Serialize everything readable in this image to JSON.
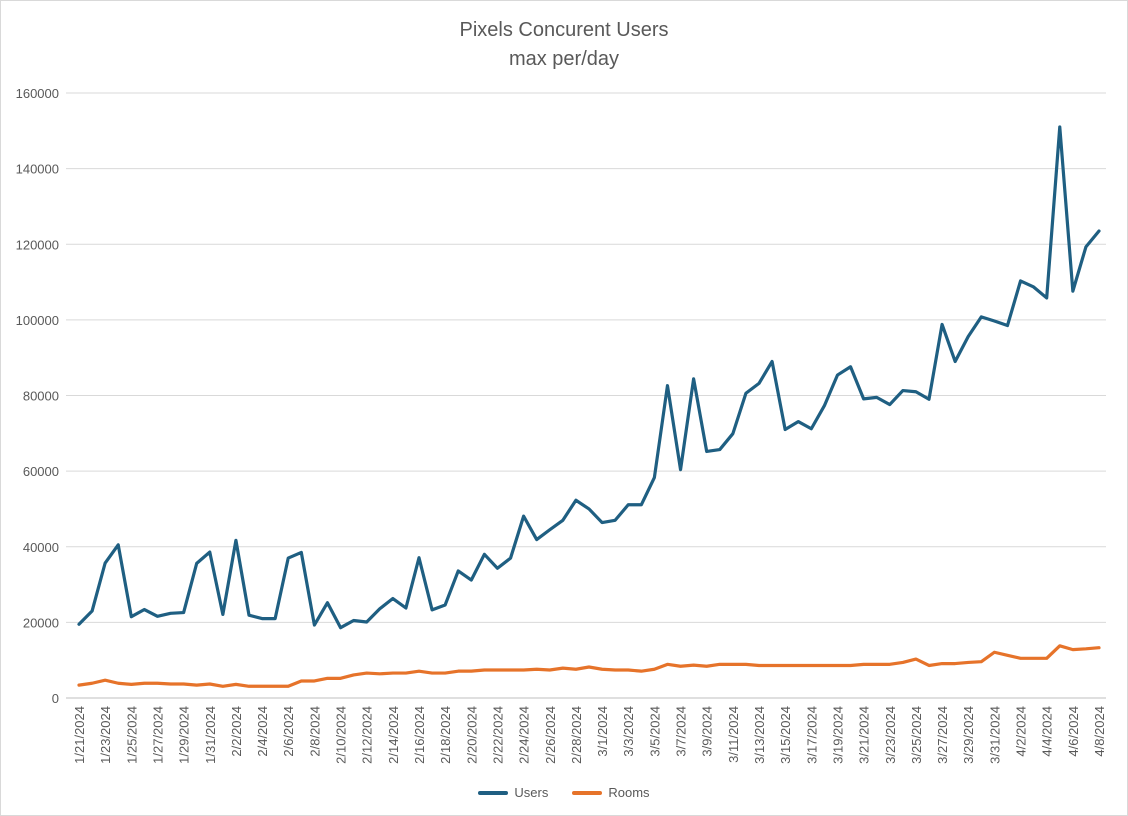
{
  "chart_data": {
    "type": "line",
    "title": "Pixels Concurent Users",
    "subtitle": "max per/day",
    "ylim": [
      0,
      160000
    ],
    "yticks": [
      0,
      20000,
      40000,
      60000,
      80000,
      100000,
      120000,
      140000,
      160000
    ],
    "grid": true,
    "legend": "bottom",
    "x_labels_every": 2,
    "x": [
      "1/21/2024",
      "1/22/2024",
      "1/23/2024",
      "1/24/2024",
      "1/25/2024",
      "1/26/2024",
      "1/27/2024",
      "1/28/2024",
      "1/29/2024",
      "1/30/2024",
      "1/31/2024",
      "2/1/2024",
      "2/2/2024",
      "2/3/2024",
      "2/4/2024",
      "2/5/2024",
      "2/6/2024",
      "2/7/2024",
      "2/8/2024",
      "2/9/2024",
      "2/10/2024",
      "2/11/2024",
      "2/12/2024",
      "2/13/2024",
      "2/14/2024",
      "2/15/2024",
      "2/16/2024",
      "2/17/2024",
      "2/18/2024",
      "2/19/2024",
      "2/20/2024",
      "2/21/2024",
      "2/22/2024",
      "2/23/2024",
      "2/24/2024",
      "2/25/2024",
      "2/26/2024",
      "2/27/2024",
      "2/28/2024",
      "2/29/2024",
      "3/1/2024",
      "3/2/2024",
      "3/3/2024",
      "3/4/2024",
      "3/5/2024",
      "3/6/2024",
      "3/7/2024",
      "3/8/2024",
      "3/9/2024",
      "3/10/2024",
      "3/11/2024",
      "3/12/2024",
      "3/13/2024",
      "3/14/2024",
      "3/15/2024",
      "3/16/2024",
      "3/17/2024",
      "3/18/2024",
      "3/19/2024",
      "3/20/2024",
      "3/21/2024",
      "3/22/2024",
      "3/23/2024",
      "3/24/2024",
      "3/25/2024",
      "3/26/2024",
      "3/27/2024",
      "3/28/2024",
      "3/29/2024",
      "3/30/2024",
      "3/31/2024",
      "4/1/2024",
      "4/2/2024",
      "4/3/2024",
      "4/4/2024",
      "4/5/2024",
      "4/6/2024",
      "4/7/2024",
      "4/8/2024"
    ],
    "series": [
      {
        "name": "Users",
        "color": "#1f5f82",
        "values": [
          19500,
          23000,
          35700,
          40500,
          21500,
          23400,
          21600,
          22400,
          22600,
          35600,
          38600,
          22100,
          41700,
          21900,
          21000,
          21000,
          37000,
          38500,
          19300,
          25200,
          18600,
          20500,
          20100,
          23600,
          26300,
          23800,
          37100,
          23300,
          24600,
          33600,
          31200,
          38000,
          34300,
          37000,
          48100,
          41900,
          44500,
          47000,
          52300,
          50000,
          46400,
          47000,
          51100,
          51100,
          58300,
          82600,
          60400,
          84400,
          65200,
          65700,
          69900,
          80600,
          83200,
          89000,
          71000,
          73100,
          71200,
          77300,
          85400,
          87600,
          79100,
          79500,
          77600,
          81300,
          81000,
          79000,
          98800,
          89000,
          95600,
          100800,
          99700,
          98500,
          110300,
          108700,
          105800,
          151000,
          107600,
          119300,
          123500
        ]
      },
      {
        "name": "Rooms",
        "color": "#e6732a",
        "values": [
          3400,
          3900,
          4700,
          3900,
          3600,
          3900,
          3900,
          3700,
          3700,
          3400,
          3700,
          3100,
          3600,
          3100,
          3100,
          3100,
          3100,
          4500,
          4500,
          5200,
          5200,
          6100,
          6600,
          6400,
          6600,
          6600,
          7100,
          6600,
          6600,
          7100,
          7100,
          7400,
          7400,
          7400,
          7400,
          7600,
          7400,
          7900,
          7600,
          8200,
          7600,
          7400,
          7400,
          7100,
          7600,
          8900,
          8400,
          8700,
          8400,
          8900,
          8900,
          8900,
          8600,
          8600,
          8600,
          8600,
          8600,
          8600,
          8600,
          8600,
          8900,
          8900,
          8900,
          9400,
          10300,
          8600,
          9100,
          9100,
          9400,
          9600,
          12100,
          11300,
          10500,
          10500,
          10500,
          13800,
          12800,
          13000,
          13300
        ]
      }
    ]
  }
}
